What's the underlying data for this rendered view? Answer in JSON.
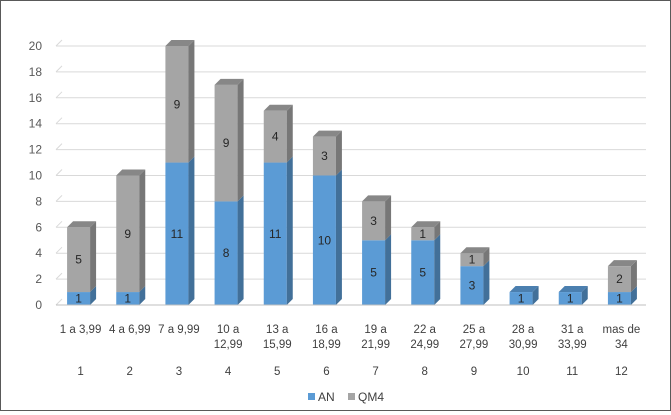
{
  "chart_data": {
    "type": "bar",
    "stacked": true,
    "categories": [
      "1 a 3,99",
      "4 a 6,99",
      "7 a 9,99",
      "10 a\n12,99",
      "13 a\n15,99",
      "16 a\n18,99",
      "19 a\n21,99",
      "22 a\n24,99",
      "25 a\n27,99",
      "28 a\n30,99",
      "31 a\n33,99",
      "mas de\n34"
    ],
    "index_labels": [
      "1",
      "2",
      "3",
      "4",
      "5",
      "6",
      "7",
      "8",
      "9",
      "10",
      "11",
      "12"
    ],
    "series": [
      {
        "name": "AN",
        "color": "#5B9BD5",
        "values": [
          1,
          1,
          11,
          8,
          11,
          10,
          5,
          5,
          3,
          1,
          1,
          1
        ]
      },
      {
        "name": "QM4",
        "color": "#A5A5A5",
        "values": [
          5,
          9,
          9,
          9,
          4,
          3,
          3,
          1,
          1,
          0,
          0,
          2
        ]
      }
    ],
    "ylim": [
      0,
      20
    ],
    "yticks": [
      "0",
      "2",
      "4",
      "6",
      "8",
      "10",
      "12",
      "14",
      "16",
      "18",
      "20"
    ],
    "grid": true,
    "legend": "bottom",
    "title": "",
    "xlabel": "",
    "ylabel": ""
  }
}
